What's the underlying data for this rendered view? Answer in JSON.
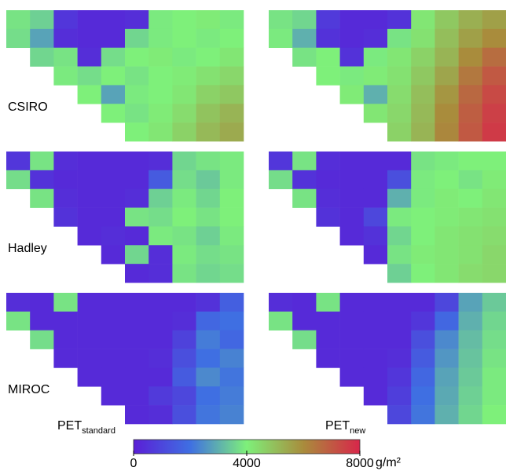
{
  "chart_data": {
    "type": "heatmap",
    "rows": [
      "CSIRO",
      "Hadley",
      "MIROC"
    ],
    "columns": [
      {
        "base": "PET",
        "sub": "standard"
      },
      {
        "base": "PET",
        "sub": "new"
      }
    ],
    "clim": [
      0,
      8000
    ],
    "colormap": [
      "#5a1ed6",
      "#3f6fe2",
      "#7ef07a",
      "#a98c3c",
      "#d8264a"
    ],
    "colorbar": {
      "ticks": [
        0,
        4000,
        8000
      ],
      "unit": "g/m²"
    },
    "panels": [
      [
        [
          [
            3800,
            3500,
            600,
            300,
            300,
            400,
            3900,
            4000,
            4100,
            3900
          ],
          [
            3700,
            2800,
            400,
            300,
            300,
            3600,
            3900,
            4000,
            3900,
            4000
          ],
          [
            null,
            3600,
            3800,
            400,
            3700,
            4000,
            4100,
            3900,
            4000,
            4200
          ],
          [
            null,
            null,
            3900,
            3700,
            4000,
            3800,
            4000,
            4100,
            4300,
            4500
          ],
          [
            null,
            null,
            null,
            4000,
            2800,
            3900,
            4000,
            4200,
            4600,
            4800
          ],
          [
            null,
            null,
            null,
            null,
            4000,
            3800,
            4100,
            4400,
            4900,
            5200
          ],
          [
            null,
            null,
            null,
            null,
            null,
            4000,
            4200,
            4600,
            5100,
            5400
          ]
        ],
        [
          [
            3800,
            3600,
            700,
            300,
            300,
            500,
            4200,
            4800,
            5300,
            5600
          ],
          [
            3900,
            3000,
            500,
            300,
            400,
            3800,
            4300,
            5000,
            5600,
            6000
          ],
          [
            null,
            3800,
            4000,
            500,
            3900,
            4200,
            4600,
            5200,
            6000,
            6600
          ],
          [
            null,
            null,
            4000,
            3900,
            4100,
            4300,
            4800,
            5500,
            6400,
            7000
          ],
          [
            null,
            null,
            null,
            4100,
            3000,
            4400,
            5000,
            5800,
            6700,
            7300
          ],
          [
            null,
            null,
            null,
            null,
            4200,
            4500,
            5100,
            6000,
            6900,
            7500
          ],
          [
            null,
            null,
            null,
            null,
            null,
            4600,
            5200,
            6100,
            7000,
            7600
          ]
        ]
      ],
      [
        [
          [
            600,
            3800,
            400,
            300,
            300,
            300,
            400,
            3600,
            3800,
            3900
          ],
          [
            3700,
            500,
            300,
            300,
            300,
            300,
            1500,
            3700,
            3400,
            3900
          ],
          [
            null,
            3800,
            400,
            300,
            300,
            400,
            3500,
            3900,
            3600,
            4000
          ],
          [
            null,
            null,
            500,
            300,
            300,
            3800,
            3700,
            4000,
            3800,
            4000
          ],
          [
            null,
            null,
            null,
            300,
            400,
            300,
            3900,
            3800,
            3500,
            3900
          ],
          [
            null,
            null,
            null,
            null,
            300,
            3600,
            400,
            3900,
            3700,
            3800
          ],
          [
            null,
            null,
            null,
            null,
            null,
            300,
            400,
            3800,
            3600,
            3700
          ]
        ],
        [
          [
            600,
            3800,
            400,
            300,
            300,
            300,
            3800,
            3900,
            4000,
            4000
          ],
          [
            3700,
            500,
            300,
            300,
            300,
            1200,
            3900,
            4000,
            3800,
            4100
          ],
          [
            null,
            3800,
            400,
            300,
            300,
            3000,
            3900,
            4100,
            4000,
            4200
          ],
          [
            null,
            null,
            500,
            300,
            1000,
            3900,
            4000,
            4100,
            4200,
            4300
          ],
          [
            null,
            null,
            null,
            300,
            500,
            3600,
            4000,
            4200,
            4300,
            4400
          ],
          [
            null,
            null,
            null,
            null,
            300,
            3800,
            4100,
            4200,
            4300,
            4500
          ],
          [
            null,
            null,
            null,
            null,
            null,
            3500,
            4000,
            4200,
            4400,
            4500
          ]
        ]
      ],
      [
        [
          [
            400,
            300,
            3800,
            300,
            300,
            300,
            300,
            300,
            500,
            1600
          ],
          [
            3800,
            300,
            300,
            300,
            300,
            300,
            300,
            400,
            1800,
            2000
          ],
          [
            null,
            3700,
            300,
            300,
            300,
            300,
            300,
            900,
            2200,
            1800
          ],
          [
            null,
            null,
            300,
            300,
            300,
            300,
            400,
            1200,
            2000,
            2300
          ],
          [
            null,
            null,
            null,
            300,
            300,
            300,
            300,
            1500,
            2400,
            2100
          ],
          [
            null,
            null,
            null,
            null,
            300,
            300,
            700,
            1000,
            2000,
            2200
          ],
          [
            null,
            null,
            null,
            null,
            null,
            300,
            400,
            1200,
            2100,
            2300
          ]
        ],
        [
          [
            400,
            300,
            3800,
            300,
            300,
            300,
            300,
            1000,
            2800,
            3400
          ],
          [
            3800,
            300,
            300,
            300,
            300,
            300,
            600,
            1800,
            3000,
            3600
          ],
          [
            null,
            3700,
            300,
            300,
            300,
            300,
            1200,
            2400,
            3200,
            3700
          ],
          [
            null,
            null,
            300,
            300,
            300,
            400,
            1500,
            2600,
            3300,
            3800
          ],
          [
            null,
            null,
            null,
            300,
            300,
            600,
            1800,
            2800,
            3400,
            3900
          ],
          [
            null,
            null,
            null,
            null,
            300,
            800,
            2000,
            2900,
            3500,
            3900
          ],
          [
            null,
            null,
            null,
            null,
            null,
            1000,
            2100,
            3000,
            3600,
            4000
          ]
        ]
      ]
    ]
  }
}
